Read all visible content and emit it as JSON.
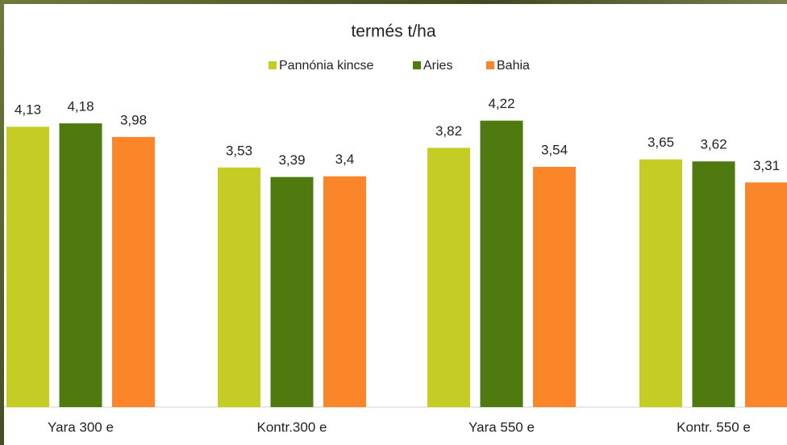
{
  "chart_data": {
    "type": "bar",
    "title": "termés t/ha",
    "categories": [
      "Yara 300 e",
      "Kontr.300 e",
      "Yara 550 e",
      "Kontr. 550 e"
    ],
    "series": [
      {
        "name": "Pannónia kincse",
        "color": "#c5cd24",
        "values": [
          4.13,
          3.53,
          3.82,
          3.65
        ],
        "value_labels": [
          "4,13",
          "3,53",
          "3,82",
          "3,65"
        ]
      },
      {
        "name": "Aries",
        "color": "#4e7a0f",
        "values": [
          4.18,
          3.39,
          4.22,
          3.62
        ],
        "value_labels": [
          "4,18",
          "3,39",
          "4,22",
          "3,62"
        ]
      },
      {
        "name": "Bahia",
        "color": "#fb8529",
        "values": [
          3.98,
          3.4,
          3.54,
          3.31
        ],
        "value_labels": [
          "3,98",
          "3,4",
          "3,54",
          "3,31"
        ]
      }
    ]
  }
}
